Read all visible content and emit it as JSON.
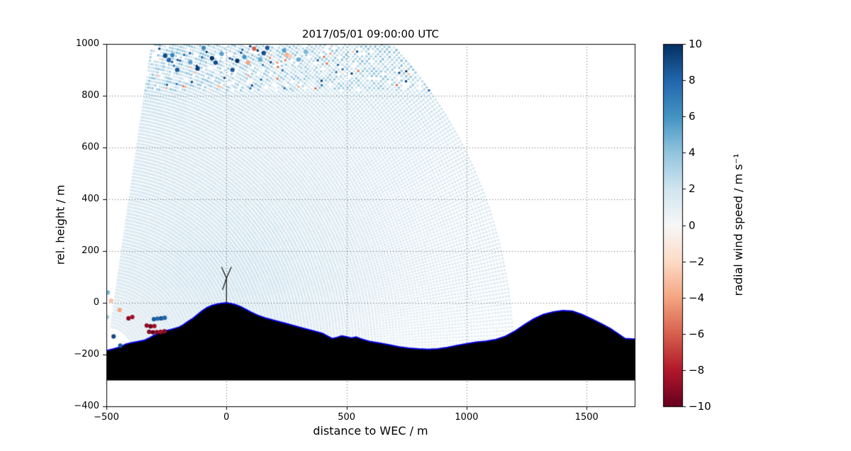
{
  "chart_data": {
    "type": "scatter",
    "title": "2017/05/01 09:00:00 UTC",
    "xlabel": "distance to WEC / m",
    "ylabel": "rel. height / m",
    "xlim": [
      -500,
      1700
    ],
    "ylim": [
      -400,
      1000
    ],
    "grid": true,
    "xticks": [
      {
        "v": -500,
        "label": "−500"
      },
      {
        "v": 0,
        "label": "0"
      },
      {
        "v": 500,
        "label": "500"
      },
      {
        "v": 1000,
        "label": "1000"
      },
      {
        "v": 1500,
        "label": "1500"
      }
    ],
    "yticks": [
      {
        "v": -400,
        "label": "−400"
      },
      {
        "v": -200,
        "label": "−200"
      },
      {
        "v": 0,
        "label": "0"
      },
      {
        "v": 200,
        "label": "200"
      },
      {
        "v": 400,
        "label": "400"
      },
      {
        "v": 600,
        "label": "600"
      },
      {
        "v": 800,
        "label": "800"
      },
      {
        "v": 1000,
        "label": "1000"
      }
    ],
    "colorbar": {
      "label": "radial wind speed / m s⁻¹",
      "vmin": -10,
      "vmax": 10,
      "cmap": "RdBu",
      "ticks": [
        {
          "v": 10,
          "label": "10"
        },
        {
          "v": 8,
          "label": "8"
        },
        {
          "v": 6,
          "label": "6"
        },
        {
          "v": 4,
          "label": "4"
        },
        {
          "v": 2,
          "label": "2"
        },
        {
          "v": 0,
          "label": "0"
        },
        {
          "v": -2,
          "label": "−2"
        },
        {
          "v": -4,
          "label": "−4"
        },
        {
          "v": -6,
          "label": "−6"
        },
        {
          "v": -8,
          "label": "−8"
        },
        {
          "v": -10,
          "label": "−10"
        }
      ],
      "stops": [
        {
          "v": -10,
          "color": "#67001f"
        },
        {
          "v": -8,
          "color": "#b2182b"
        },
        {
          "v": -6,
          "color": "#d6604d"
        },
        {
          "v": -4,
          "color": "#f4a582"
        },
        {
          "v": -2,
          "color": "#fddbc7"
        },
        {
          "v": 0,
          "color": "#f7f7f7"
        },
        {
          "v": 2,
          "color": "#d1e5f0"
        },
        {
          "v": 4,
          "color": "#92c5de"
        },
        {
          "v": 6,
          "color": "#4393c3"
        },
        {
          "v": 8,
          "color": "#2166ac"
        },
        {
          "v": 10,
          "color": "#053061"
        }
      ]
    },
    "scan": {
      "origin": [
        -500,
        -210
      ],
      "radius_m": 1700,
      "range_start_m": 120,
      "range_step_m": 13,
      "angle_min_deg": 1.5,
      "angle_max_deg": 81,
      "beam_step_deg": 0.5,
      "base_speed": 1.5
    },
    "outliers": [
      {
        "x": -255,
        "y": 955,
        "v": 9
      },
      {
        "x": -240,
        "y": 938,
        "v": 8
      },
      {
        "x": -225,
        "y": 957,
        "v": 6.5
      },
      {
        "x": -205,
        "y": 900,
        "v": 8.5
      },
      {
        "x": -150,
        "y": 930,
        "v": 5.5
      },
      {
        "x": -120,
        "y": 905,
        "v": 9.5
      },
      {
        "x": -95,
        "y": 985,
        "v": 6.5
      },
      {
        "x": -60,
        "y": 945,
        "v": 10
      },
      {
        "x": -45,
        "y": 928,
        "v": 9
      },
      {
        "x": -20,
        "y": 962,
        "v": 5.5
      },
      {
        "x": 25,
        "y": 900,
        "v": 8.5
      },
      {
        "x": 45,
        "y": 935,
        "v": 10
      },
      {
        "x": 75,
        "y": 950,
        "v": 6
      },
      {
        "x": 90,
        "y": 928,
        "v": -4
      },
      {
        "x": 115,
        "y": 982,
        "v": -6
      },
      {
        "x": 140,
        "y": 940,
        "v": 5
      },
      {
        "x": 155,
        "y": 965,
        "v": 9
      },
      {
        "x": 170,
        "y": 985,
        "v": 8.5
      },
      {
        "x": 240,
        "y": 975,
        "v": 5.5
      },
      {
        "x": 250,
        "y": 958,
        "v": -3.5
      },
      {
        "x": 265,
        "y": 952,
        "v": -2.5
      },
      {
        "x": 300,
        "y": 940,
        "v": 5
      },
      {
        "x": 330,
        "y": 970,
        "v": 4.5
      },
      {
        "x": -494,
        "y": 40,
        "v": 4.5
      },
      {
        "x": -497,
        "y": -55,
        "v": 3.5
      },
      {
        "x": -470,
        "y": -130,
        "v": 9
      },
      {
        "x": -442,
        "y": -165,
        "v": 8.5
      },
      {
        "x": -445,
        "y": -28,
        "v": -4
      },
      {
        "x": -480,
        "y": 8,
        "v": -3
      },
      {
        "x": -408,
        "y": -60,
        "v": -9
      },
      {
        "x": -392,
        "y": -55,
        "v": -8.5
      },
      {
        "x": -302,
        "y": -63,
        "v": 8.5
      },
      {
        "x": -287,
        "y": -61,
        "v": 8
      },
      {
        "x": -272,
        "y": -60,
        "v": 8.5
      },
      {
        "x": -257,
        "y": -58,
        "v": 8
      },
      {
        "x": -332,
        "y": -88,
        "v": -9
      },
      {
        "x": -316,
        "y": -91,
        "v": -9.5
      },
      {
        "x": -300,
        "y": -90,
        "v": -8.5
      },
      {
        "x": -322,
        "y": -112,
        "v": -9
      },
      {
        "x": -306,
        "y": -114,
        "v": -10
      },
      {
        "x": -290,
        "y": -113,
        "v": -9
      },
      {
        "x": -274,
        "y": -112,
        "v": -8.5
      },
      {
        "x": -258,
        "y": -110,
        "v": -9
      }
    ],
    "terrain": {
      "fill_color": "#000000",
      "outline_color": "#0000ee",
      "base": -300,
      "points": [
        [
          -500,
          -185
        ],
        [
          -470,
          -178
        ],
        [
          -440,
          -170
        ],
        [
          -420,
          -160
        ],
        [
          -400,
          -155
        ],
        [
          -370,
          -150
        ],
        [
          -340,
          -144
        ],
        [
          -320,
          -135
        ],
        [
          -300,
          -125
        ],
        [
          -280,
          -115
        ],
        [
          -260,
          -110
        ],
        [
          -240,
          -105
        ],
        [
          -220,
          -100
        ],
        [
          -200,
          -95
        ],
        [
          -180,
          -85
        ],
        [
          -160,
          -72
        ],
        [
          -140,
          -60
        ],
        [
          -120,
          -45
        ],
        [
          -100,
          -30
        ],
        [
          -80,
          -18
        ],
        [
          -60,
          -10
        ],
        [
          -40,
          -5
        ],
        [
          -20,
          -2
        ],
        [
          0,
          0
        ],
        [
          20,
          -3
        ],
        [
          40,
          -8
        ],
        [
          60,
          -15
        ],
        [
          80,
          -25
        ],
        [
          100,
          -35
        ],
        [
          130,
          -48
        ],
        [
          160,
          -58
        ],
        [
          200,
          -68
        ],
        [
          240,
          -78
        ],
        [
          280,
          -88
        ],
        [
          320,
          -98
        ],
        [
          360,
          -108
        ],
        [
          400,
          -118
        ],
        [
          420,
          -128
        ],
        [
          440,
          -138
        ],
        [
          460,
          -134
        ],
        [
          480,
          -128
        ],
        [
          500,
          -131
        ],
        [
          520,
          -136
        ],
        [
          540,
          -132
        ],
        [
          560,
          -139
        ],
        [
          580,
          -145
        ],
        [
          600,
          -150
        ],
        [
          640,
          -156
        ],
        [
          680,
          -163
        ],
        [
          720,
          -170
        ],
        [
          760,
          -175
        ],
        [
          800,
          -178
        ],
        [
          840,
          -180
        ],
        [
          880,
          -178
        ],
        [
          920,
          -172
        ],
        [
          960,
          -165
        ],
        [
          1000,
          -158
        ],
        [
          1040,
          -152
        ],
        [
          1080,
          -148
        ],
        [
          1120,
          -142
        ],
        [
          1160,
          -130
        ],
        [
          1200,
          -110
        ],
        [
          1240,
          -85
        ],
        [
          1280,
          -62
        ],
        [
          1320,
          -45
        ],
        [
          1360,
          -35
        ],
        [
          1400,
          -30
        ],
        [
          1440,
          -32
        ],
        [
          1480,
          -45
        ],
        [
          1520,
          -62
        ],
        [
          1560,
          -80
        ],
        [
          1600,
          -100
        ],
        [
          1640,
          -125
        ],
        [
          1660,
          -138
        ],
        [
          1700,
          -140
        ]
      ]
    },
    "turbine": {
      "x": 0,
      "base": 0,
      "hub_height": 95,
      "rotor_radius": 48,
      "blade_angles_deg": [
        65,
        115,
        250
      ],
      "color": "#000000"
    }
  }
}
